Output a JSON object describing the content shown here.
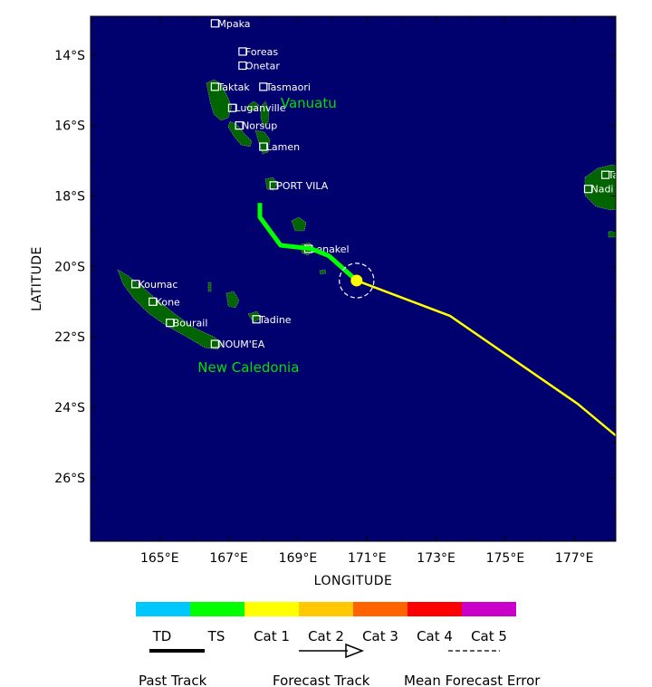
{
  "map": {
    "lon_min": 163,
    "lon_max": 178.2,
    "lat_top": -12.9,
    "lat_bottom": -27.8,
    "ocean_color": "#00006e",
    "land_color": "#006400",
    "x_label": "LONGITUDE",
    "y_label": "LATITUDE",
    "x_ticks": [
      {
        "lon": 165,
        "label": "165°E"
      },
      {
        "lon": 167,
        "label": "167°E"
      },
      {
        "lon": 169,
        "label": "169°E"
      },
      {
        "lon": 171,
        "label": "171°E"
      },
      {
        "lon": 173,
        "label": "173°E"
      },
      {
        "lon": 175,
        "label": "175°E"
      },
      {
        "lon": 177,
        "label": "177°E"
      }
    ],
    "y_ticks": [
      {
        "lat": -14,
        "label": "14°S"
      },
      {
        "lat": -16,
        "label": "16°S"
      },
      {
        "lat": -18,
        "label": "18°S"
      },
      {
        "lat": -20,
        "label": "20°S"
      },
      {
        "lat": -22,
        "label": "22°S"
      },
      {
        "lat": -24,
        "label": "24°S"
      },
      {
        "lat": -26,
        "label": "26°S"
      }
    ]
  },
  "places": [
    {
      "name": "Mpaka",
      "lon": 166.6,
      "lat": -13.1
    },
    {
      "name": "Foreas",
      "lon": 167.4,
      "lat": -13.9
    },
    {
      "name": "Onetar",
      "lon": 167.4,
      "lat": -14.3
    },
    {
      "name": "Taktak",
      "lon": 166.6,
      "lat": -14.9
    },
    {
      "name": "Tasmaori",
      "lon": 168.0,
      "lat": -14.9
    },
    {
      "name": "Luganville",
      "lon": 167.1,
      "lat": -15.5
    },
    {
      "name": "Norsup",
      "lon": 167.3,
      "lat": -16.0
    },
    {
      "name": "Lamen",
      "lon": 168.0,
      "lat": -16.6
    },
    {
      "name": "PORT VILA",
      "lon": 168.3,
      "lat": -17.7
    },
    {
      "name": "Lenakel",
      "lon": 169.3,
      "lat": -19.5
    },
    {
      "name": "Koumac",
      "lon": 164.3,
      "lat": -20.5
    },
    {
      "name": "Kone",
      "lon": 164.8,
      "lat": -21.0
    },
    {
      "name": "Bourail",
      "lon": 165.3,
      "lat": -21.6
    },
    {
      "name": "Tadine",
      "lon": 167.8,
      "lat": -21.5
    },
    {
      "name": "NOUM'EA",
      "lon": 166.6,
      "lat": -22.2
    },
    {
      "name": "Tavua",
      "lon": 177.9,
      "lat": -17.4
    },
    {
      "name": "Nadi",
      "lon": 177.4,
      "lat": -17.8
    }
  ],
  "regions": [
    {
      "name": "Vanuatu",
      "lon": 168.5,
      "lat": -15.5
    },
    {
      "name": "New Caledonia",
      "lon": 166.1,
      "lat": -23.0
    }
  ],
  "tracks": {
    "past": {
      "color": "#00ff00",
      "points": [
        [
          167.9,
          -18.2
        ],
        [
          167.9,
          -18.6
        ],
        [
          168.5,
          -19.4
        ],
        [
          169.4,
          -19.5
        ],
        [
          169.9,
          -19.7
        ],
        [
          170.7,
          -20.4
        ]
      ]
    },
    "forecast": {
      "color": "#ffff00",
      "points": [
        [
          170.7,
          -20.4
        ],
        [
          173.4,
          -21.4
        ],
        [
          177.1,
          -23.9
        ],
        [
          178.2,
          -24.8
        ]
      ]
    },
    "current_position": {
      "lon": 170.7,
      "lat": -20.4,
      "color": "#ffff00",
      "error_radius_deg": 0.5
    }
  },
  "legend": {
    "colors": [
      "#00c8ff",
      "#00ff00",
      "#ffff00",
      "#ffc800",
      "#ff6400",
      "#ff0000",
      "#c800c8"
    ],
    "labels": [
      "TD",
      "TS",
      "Cat 1",
      "Cat 2",
      "Cat 3",
      "Cat 4",
      "Cat 5"
    ],
    "past_track_label": "Past Track",
    "forecast_track_label": "Forecast Track",
    "mean_error_label": "Mean Forecast Error"
  }
}
